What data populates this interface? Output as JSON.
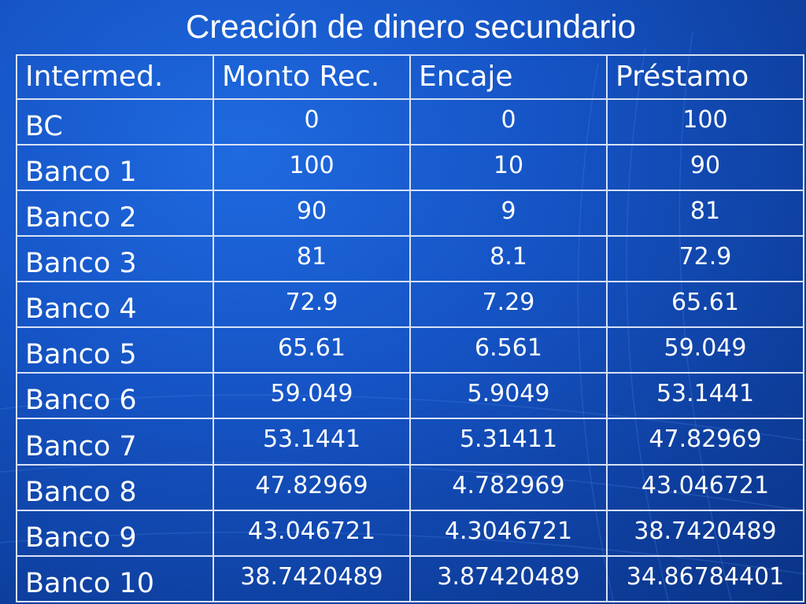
{
  "slide": {
    "title": "Creación de dinero secundario"
  },
  "table": {
    "headers": [
      "Intermed.",
      "Monto Rec.",
      "Encaje",
      "Préstamo"
    ],
    "rows": [
      [
        "BC",
        "0",
        "0",
        "100"
      ],
      [
        "Banco 1",
        "100",
        "10",
        "90"
      ],
      [
        "Banco 2",
        "90",
        "9",
        "81"
      ],
      [
        "Banco 3",
        "81",
        "8.1",
        "72.9"
      ],
      [
        "Banco 4",
        "72.9",
        "7.29",
        "65.61"
      ],
      [
        "Banco 5",
        "65.61",
        "6.561",
        "59.049"
      ],
      [
        "Banco 6",
        "59.049",
        "5.9049",
        "53.1441"
      ],
      [
        "Banco 7",
        "53.1441",
        "5.31411",
        "47.82969"
      ],
      [
        "Banco 8",
        "47.82969",
        "4.782969",
        "43.046721"
      ],
      [
        "Banco 9",
        "43.046721",
        "4.3046721",
        "38.7420489"
      ],
      [
        "Banco 10",
        "38.7420489",
        "3.87420489",
        "34.86784401"
      ]
    ]
  },
  "colors": {
    "background": "#1553c4",
    "text": "#ffffff",
    "grid": "#d8e2f4"
  }
}
